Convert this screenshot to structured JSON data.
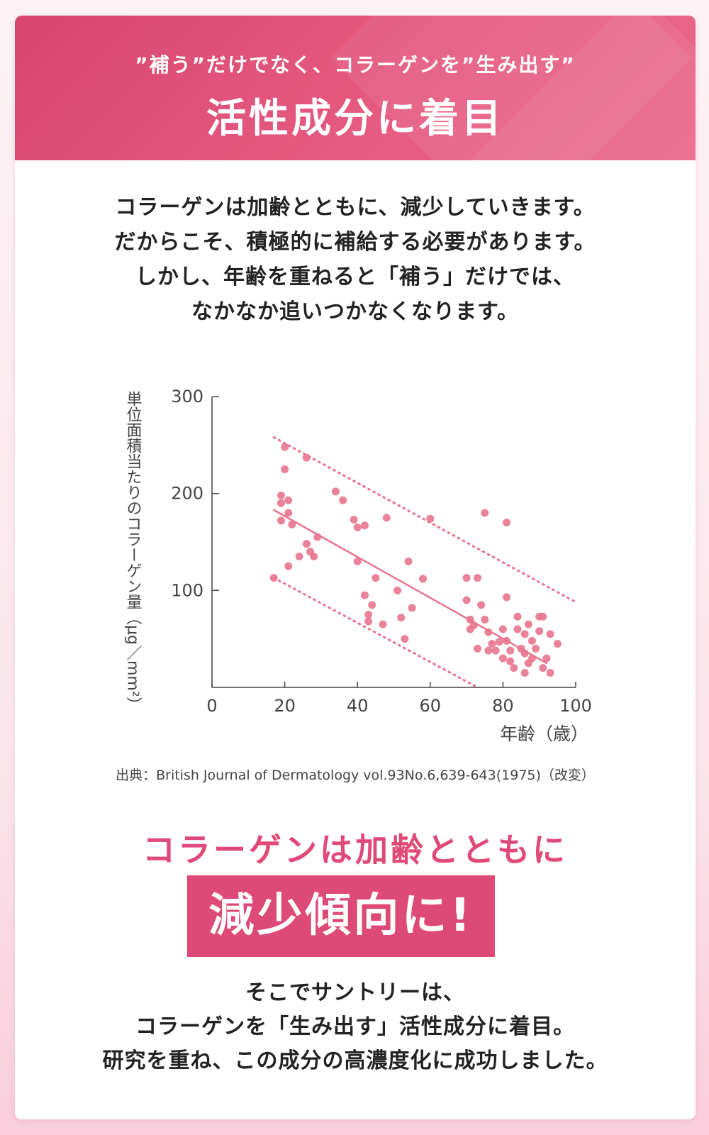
{
  "banner": {
    "subtitle": "”補う”だけでなく、コラーゲンを”生み出す”",
    "title": "活性成分に着目"
  },
  "intro": {
    "lines": [
      "コラーゲンは加齢とともに、減少していきます。",
      "だからこそ、積極的に補給する必要があります。",
      "しかし、年齢を重ねると「補う」だけでは、",
      "なかなか追いつかなくなります。"
    ]
  },
  "chart_data": {
    "type": "scatter",
    "title": "",
    "xlabel": "年齢（歳）",
    "ylabel": "単位面積当たりのコラーゲン量（μg／mm²）",
    "xlim": [
      0,
      100
    ],
    "ylim": [
      0,
      300
    ],
    "x_ticks": [
      0,
      20,
      40,
      60,
      80,
      100
    ],
    "y_ticks": [
      100,
      200,
      300
    ],
    "color": "#e8748f",
    "points": [
      [
        17,
        113
      ],
      [
        19,
        198
      ],
      [
        19,
        190
      ],
      [
        19,
        172
      ],
      [
        20,
        248
      ],
      [
        20,
        225
      ],
      [
        21,
        193
      ],
      [
        21,
        180
      ],
      [
        21,
        125
      ],
      [
        22,
        168
      ],
      [
        24,
        135
      ],
      [
        26,
        237
      ],
      [
        26,
        148
      ],
      [
        27,
        140
      ],
      [
        28,
        135
      ],
      [
        29,
        155
      ],
      [
        34,
        202
      ],
      [
        36,
        193
      ],
      [
        39,
        173
      ],
      [
        40,
        165
      ],
      [
        40,
        130
      ],
      [
        42,
        167
      ],
      [
        42,
        95
      ],
      [
        43,
        75
      ],
      [
        43,
        68
      ],
      [
        44,
        85
      ],
      [
        45,
        113
      ],
      [
        47,
        65
      ],
      [
        48,
        175
      ],
      [
        51,
        100
      ],
      [
        52,
        72
      ],
      [
        53,
        50
      ],
      [
        54,
        130
      ],
      [
        55,
        82
      ],
      [
        58,
        112
      ],
      [
        60,
        174
      ],
      [
        70,
        113
      ],
      [
        70,
        90
      ],
      [
        71,
        70
      ],
      [
        71,
        60
      ],
      [
        73,
        113
      ],
      [
        74,
        85
      ],
      [
        75,
        180
      ],
      [
        75,
        70
      ],
      [
        76,
        57
      ],
      [
        77,
        45
      ],
      [
        78,
        38
      ],
      [
        80,
        30
      ],
      [
        81,
        170
      ],
      [
        81,
        93
      ],
      [
        81,
        48
      ],
      [
        82,
        27
      ],
      [
        82,
        38
      ],
      [
        83,
        20
      ],
      [
        84,
        60
      ],
      [
        84,
        73
      ],
      [
        85,
        40
      ],
      [
        86,
        35
      ],
      [
        86,
        55
      ],
      [
        87,
        25
      ],
      [
        87,
        65
      ],
      [
        88,
        48
      ],
      [
        88,
        30
      ],
      [
        89,
        40
      ],
      [
        90,
        73
      ],
      [
        90,
        58
      ],
      [
        91,
        20
      ],
      [
        92,
        30
      ],
      [
        93,
        15
      ],
      [
        93,
        55
      ],
      [
        95,
        45
      ],
      [
        80,
        60
      ],
      [
        76,
        38
      ],
      [
        73,
        40
      ],
      [
        72,
        64
      ],
      [
        86,
        15
      ],
      [
        91,
        73
      ],
      [
        79,
        47
      ]
    ],
    "trend_line": [
      [
        17,
        183
      ],
      [
        92,
        25
      ]
    ],
    "upper_bound": [
      [
        17,
        258
      ],
      [
        100,
        88
      ]
    ],
    "lower_bound": [
      [
        17,
        113
      ],
      [
        73,
        0
      ]
    ]
  },
  "source": "出典：British Journal of Dermatology vol.93No.6,639-643(1975)（改変）",
  "headline": "コラーゲンは加齢とともに",
  "highlight": "減少傾向に!",
  "outro": {
    "lines": [
      "そこでサントリーは、",
      "コラーゲンを「生み出す」活性成分に着目。",
      "研究を重ね、この成分の高濃度化に成功しました。"
    ]
  }
}
